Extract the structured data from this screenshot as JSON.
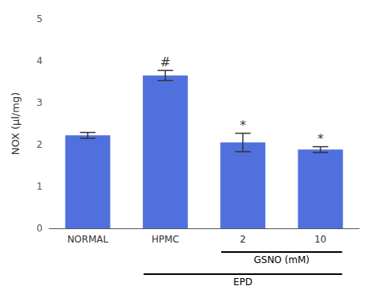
{
  "chart_data": {
    "type": "bar",
    "categories": [
      "NORMAL",
      "HPMC",
      "2",
      "10"
    ],
    "values": [
      2.22,
      3.65,
      2.05,
      1.88
    ],
    "errors": [
      0.07,
      0.12,
      0.22,
      0.07
    ],
    "ylabel": "NOX (μl/mg)",
    "ylim": [
      0,
      5
    ],
    "yticks": [
      0,
      1,
      2,
      3,
      4,
      5
    ],
    "grid": false,
    "annotations": [
      {
        "text": "#",
        "x": "HPMC",
        "y": 3.82
      },
      {
        "text": "*",
        "x": "2",
        "y": 2.32
      },
      {
        "text": "*",
        "x": "10",
        "y": 1.99
      }
    ],
    "brackets": [
      {
        "text": "GSNO (mM)",
        "from": "2",
        "to": "10"
      },
      {
        "text": "EPD",
        "from": "HPMC",
        "to": "10"
      }
    ]
  }
}
